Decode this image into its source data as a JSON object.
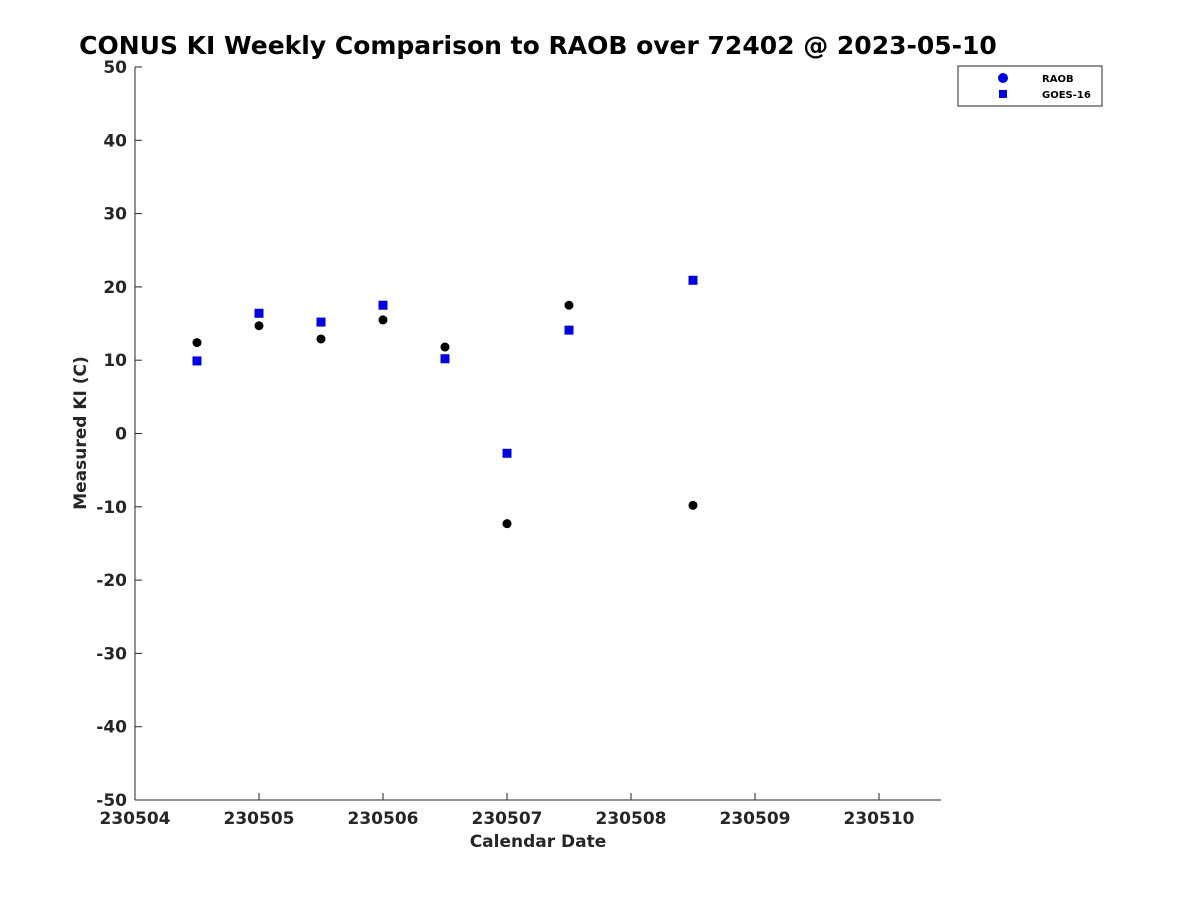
{
  "chart_data": {
    "type": "scatter",
    "title": "CONUS KI Weekly Comparison to RAOB over 72402 @ 2023-05-10",
    "xlabel": "Calendar Date",
    "ylabel": "Measured KI (C)",
    "xlim": [
      230504,
      230510.5
    ],
    "ylim": [
      -50,
      50
    ],
    "x_ticks": [
      230504,
      230505,
      230506,
      230507,
      230508,
      230509,
      230510
    ],
    "x_tick_labels": [
      "230504",
      "230505",
      "230506",
      "230507",
      "230508",
      "230509",
      "230510"
    ],
    "y_ticks": [
      -50,
      -40,
      -30,
      -20,
      -10,
      0,
      10,
      20,
      30,
      40,
      50
    ],
    "y_tick_labels": [
      "-50",
      "-40",
      "-30",
      "-20",
      "-10",
      "0",
      "10",
      "20",
      "30",
      "40",
      "50"
    ],
    "grid": false,
    "legend_position": "top-right",
    "series": [
      {
        "name": "RAOB",
        "marker": "circle",
        "color": "#000000",
        "legend_color": "#0000e0",
        "x": [
          230504.5,
          230505.0,
          230505.5,
          230506.0,
          230506.5,
          230507.0,
          230507.5,
          230508.5
        ],
        "y": [
          12.4,
          14.7,
          12.9,
          15.5,
          11.8,
          -12.3,
          17.5,
          -9.8
        ]
      },
      {
        "name": "GOES-16",
        "marker": "square",
        "color": "#0000e0",
        "x": [
          230504.5,
          230505.0,
          230505.5,
          230506.0,
          230506.5,
          230507.0,
          230507.5,
          230508.5
        ],
        "y": [
          9.9,
          16.4,
          15.2,
          17.5,
          10.2,
          -2.7,
          14.1,
          20.9
        ]
      }
    ]
  }
}
